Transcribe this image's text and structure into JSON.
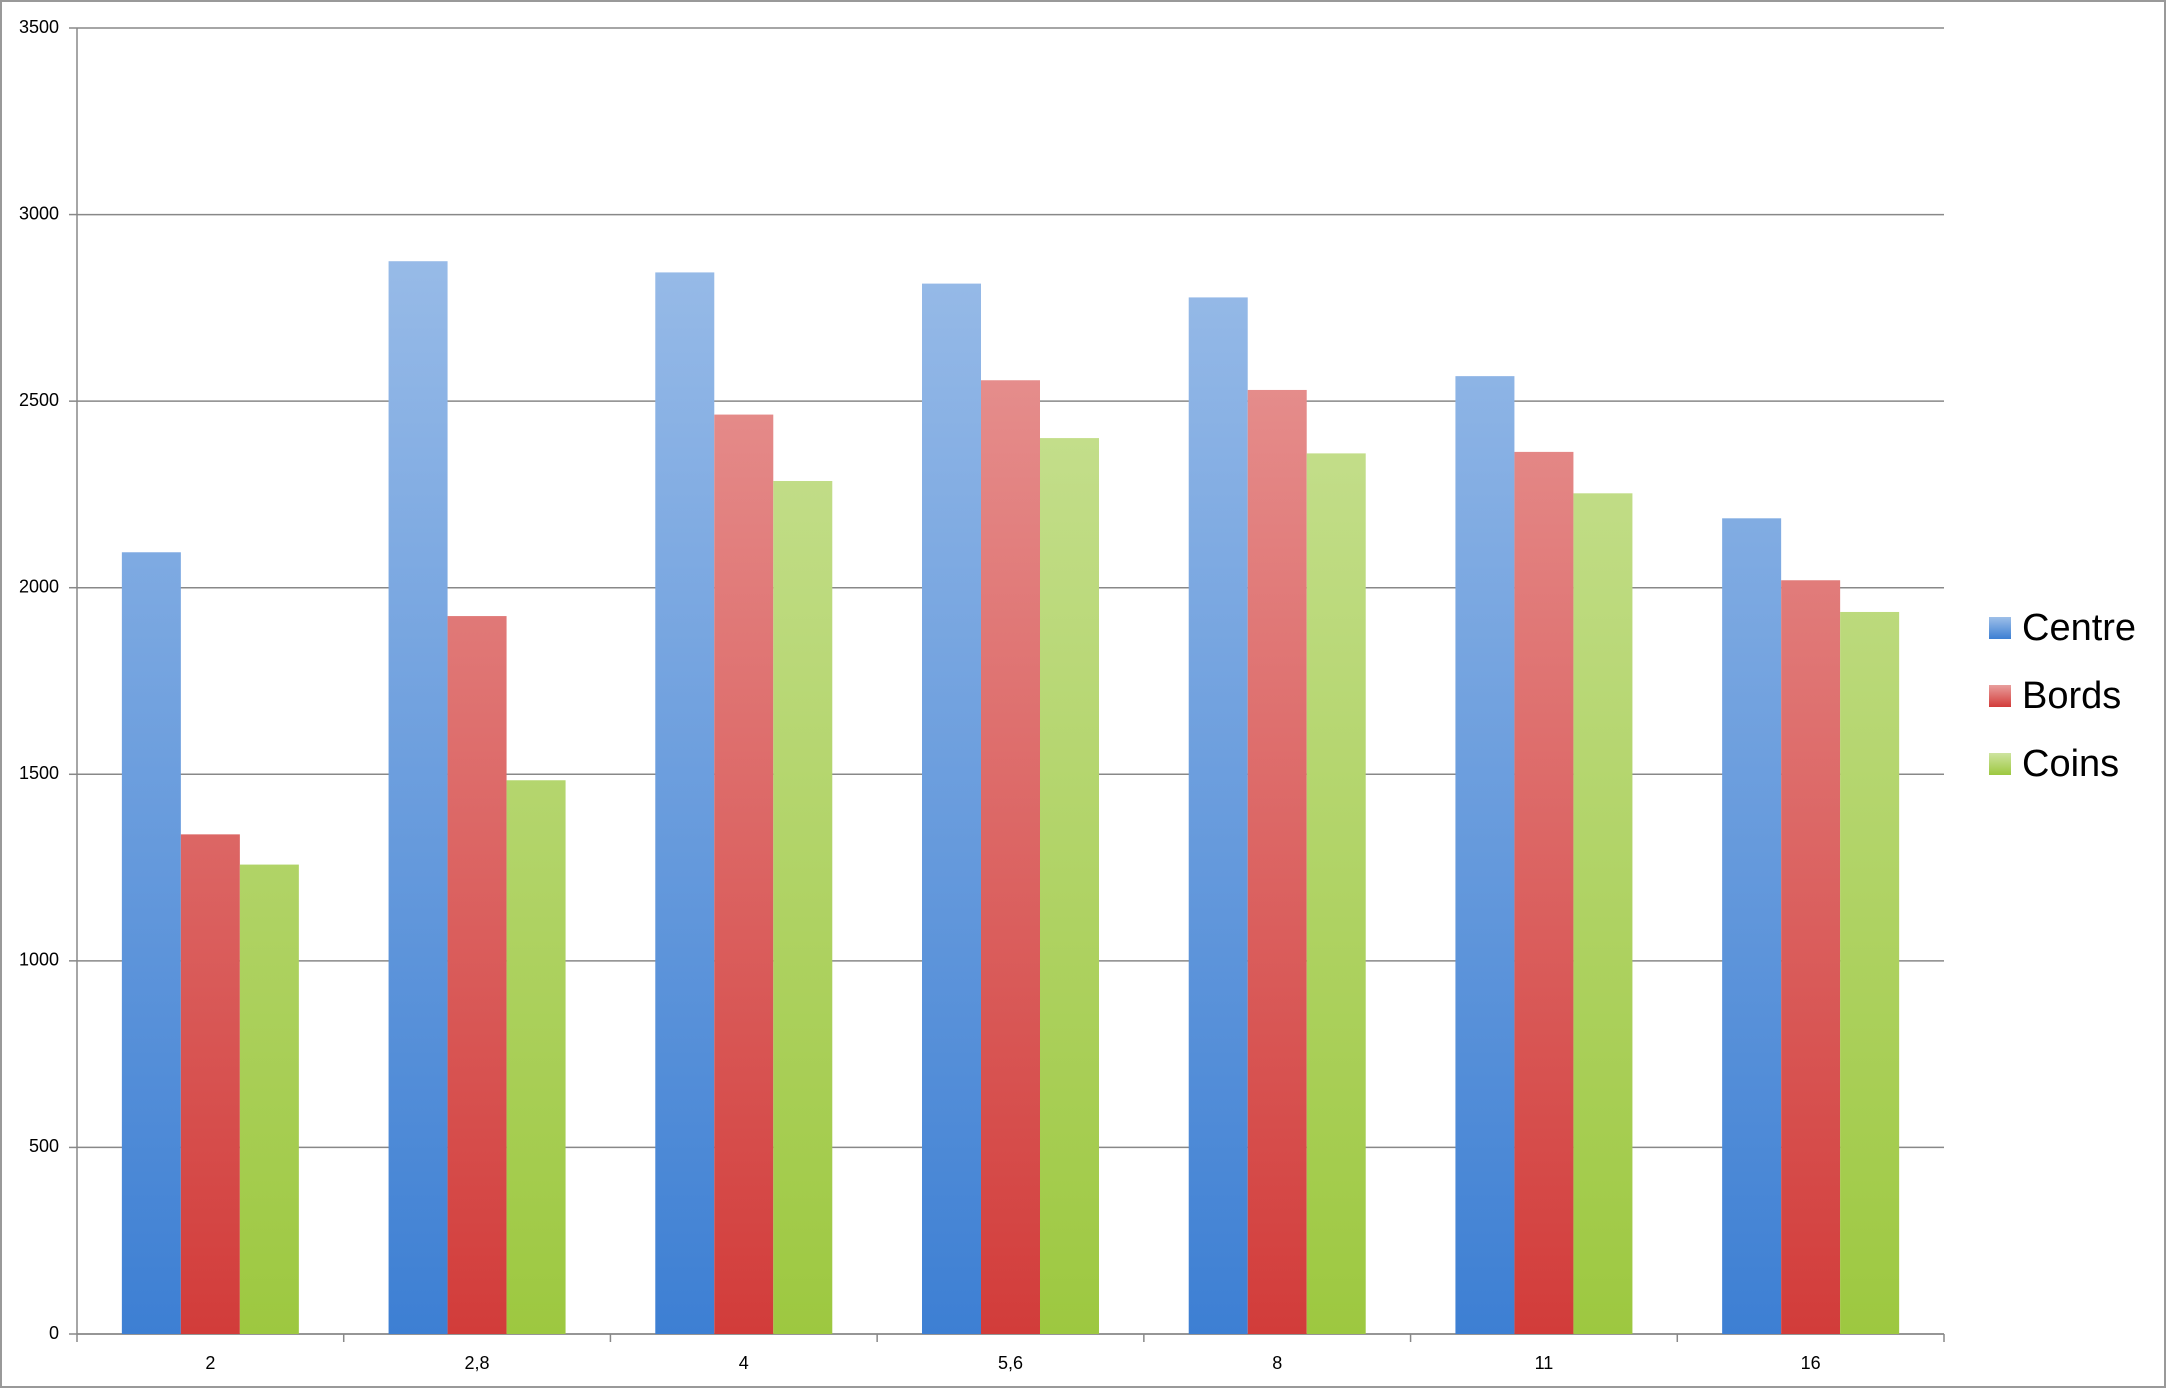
{
  "chart_data": {
    "type": "bar",
    "categories": [
      "2",
      "2,8",
      "4",
      "5,6",
      "8",
      "11",
      "16"
    ],
    "series": [
      {
        "name": "Centre",
        "color": "#3d7fd3",
        "values": [
          2095,
          2875,
          2845,
          2815,
          2778,
          2567,
          2186
        ]
      },
      {
        "name": "Bords",
        "color": "#d23c3a",
        "values": [
          1339,
          1924,
          2464,
          2556,
          2530,
          2364,
          2020
        ]
      },
      {
        "name": "Coins",
        "color": "#9dc840",
        "values": [
          1258,
          1484,
          2286,
          2401,
          2360,
          2253,
          1935
        ]
      }
    ],
    "ylim": [
      0,
      3500
    ],
    "yticks": [
      0,
      500,
      1000,
      1500,
      2000,
      2500,
      3000,
      3500
    ],
    "grid": true,
    "legend": "right"
  }
}
